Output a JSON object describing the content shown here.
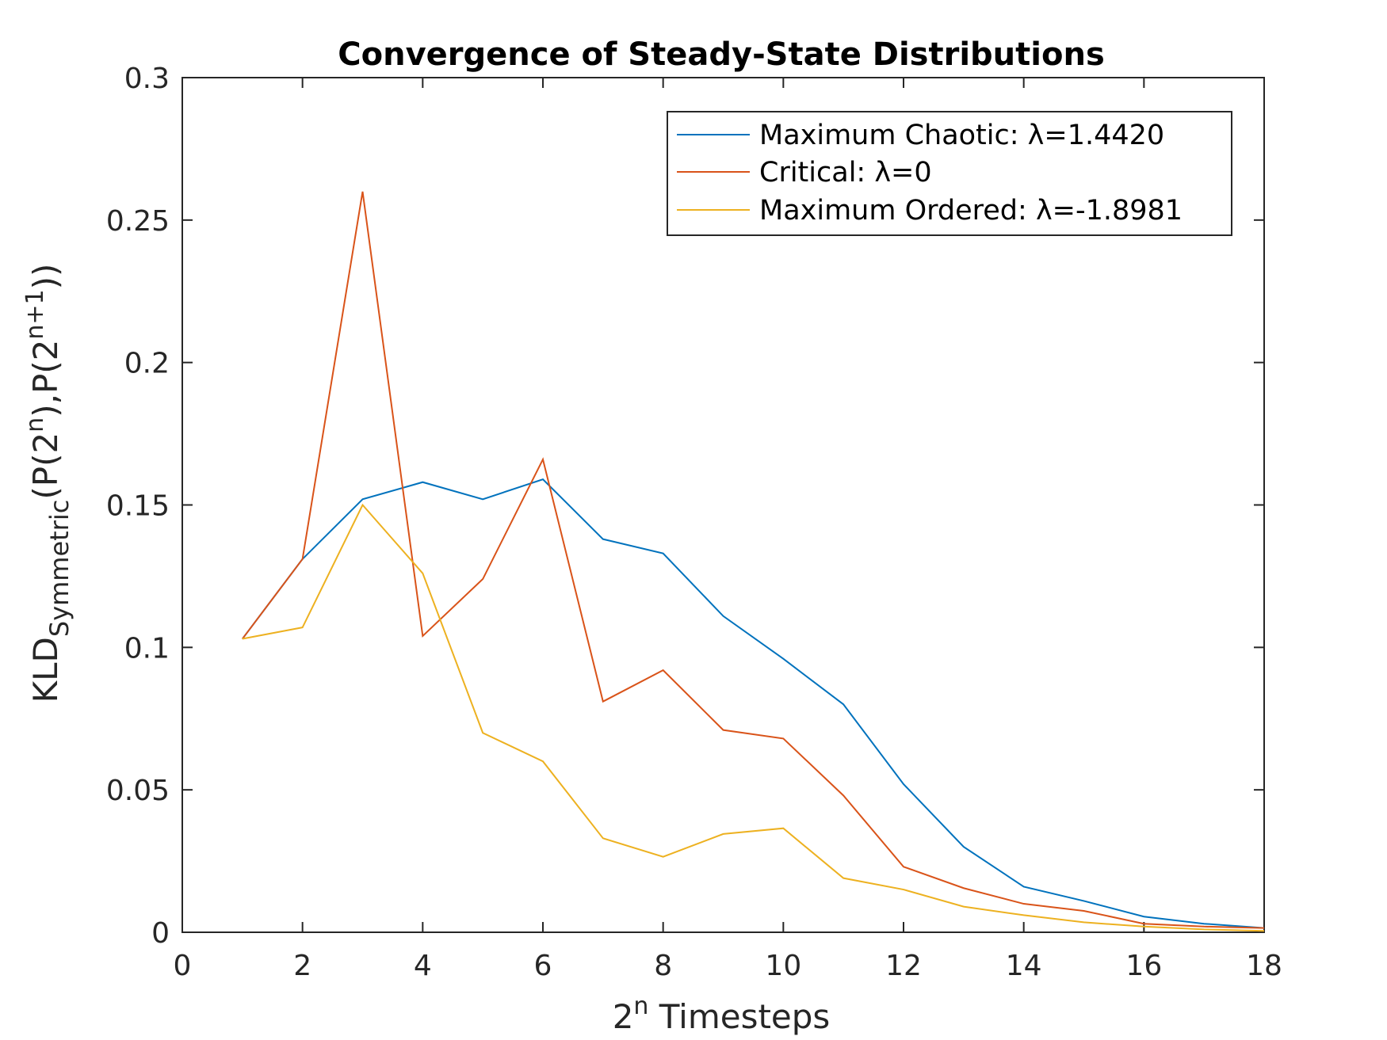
{
  "chart_data": {
    "type": "line",
    "title": "Convergence of Steady-State Distributions",
    "xlabel": {
      "base": "2",
      "sup": "n",
      "rest": " Timesteps"
    },
    "ylabel": {
      "main": "KLD",
      "sub": "Symmetric",
      "p1": "(P(2",
      "sup1": "n",
      "p2": "),P(2",
      "sup2": "n+1",
      "p3": "))"
    },
    "xlim": [
      0,
      18
    ],
    "ylim": [
      0,
      0.3
    ],
    "xticks": [
      "0",
      "2",
      "4",
      "6",
      "8",
      "10",
      "12",
      "14",
      "16",
      "18"
    ],
    "yticks": [
      "0",
      "0.05",
      "0.1",
      "0.15",
      "0.2",
      "0.25",
      "0.3"
    ],
    "grid": false,
    "legend_position": "top-right",
    "x": [
      1,
      2,
      3,
      4,
      5,
      6,
      7,
      8,
      9,
      10,
      11,
      12,
      13,
      14,
      15,
      16,
      17,
      18
    ],
    "series": [
      {
        "name": "Maximum Chaotic: λ=1.4420",
        "color": "#0072BD",
        "values": [
          0.103,
          0.131,
          0.152,
          0.158,
          0.152,
          0.159,
          0.138,
          0.133,
          0.111,
          0.096,
          0.08,
          0.052,
          0.03,
          0.016,
          0.011,
          0.0055,
          0.003,
          0.0015
        ]
      },
      {
        "name": "Critical: λ=0",
        "color": "#D95319",
        "values": [
          0.103,
          0.131,
          0.26,
          0.104,
          0.124,
          0.166,
          0.081,
          0.092,
          0.071,
          0.068,
          0.048,
          0.023,
          0.0155,
          0.01,
          0.0075,
          0.003,
          0.002,
          0.0015
        ]
      },
      {
        "name": "Maximum Ordered: λ=-1.8981",
        "color": "#EDB120",
        "values": [
          0.103,
          0.107,
          0.15,
          0.126,
          0.07,
          0.06,
          0.033,
          0.0265,
          0.0345,
          0.0365,
          0.019,
          0.015,
          0.009,
          0.006,
          0.0035,
          0.002,
          0.001,
          0.0005
        ]
      }
    ]
  }
}
